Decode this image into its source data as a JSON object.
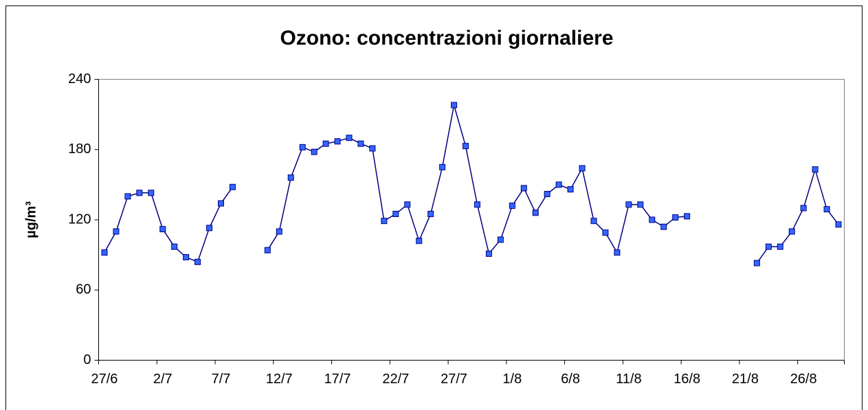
{
  "chart_data": {
    "type": "line",
    "title": "Ozono: concentrazioni giornaliere",
    "y_label": "µg/m³",
    "categories": [
      "27/6",
      null,
      null,
      null,
      null,
      "2/7",
      null,
      null,
      null,
      null,
      "7/7",
      null,
      null,
      null,
      null,
      "12/7",
      null,
      null,
      null,
      null,
      "17/7",
      null,
      null,
      null,
      null,
      "22/7",
      null,
      null,
      null,
      null,
      "27/7",
      null,
      null,
      null,
      null,
      "1/8",
      null,
      null,
      null,
      null,
      "6/8",
      null,
      null,
      null,
      null,
      "11/8",
      null,
      null,
      null,
      null,
      "16/8",
      null,
      null,
      null,
      null,
      "21/8",
      null,
      null,
      null,
      null,
      "26/8",
      null,
      null,
      null
    ],
    "series": [
      {
        "color": "#3366ff",
        "line_color": "#000080",
        "values": [
          92,
          110,
          140,
          143,
          143,
          112,
          97,
          88,
          84,
          113,
          134,
          148,
          null,
          null,
          94,
          110,
          156,
          182,
          178,
          185,
          187,
          190,
          185,
          181,
          119,
          125,
          133,
          102,
          125,
          165,
          218,
          183,
          133,
          91,
          103,
          132,
          147,
          126,
          142,
          150,
          146,
          164,
          119,
          109,
          92,
          133,
          133,
          120,
          114,
          122,
          123,
          null,
          null,
          null,
          null,
          null,
          83,
          97,
          97,
          110,
          130,
          163,
          129,
          116
        ]
      }
    ],
    "ylim": [
      0,
      240
    ],
    "yticks": [
      0,
      60,
      120,
      180,
      240
    ],
    "grid": false
  }
}
